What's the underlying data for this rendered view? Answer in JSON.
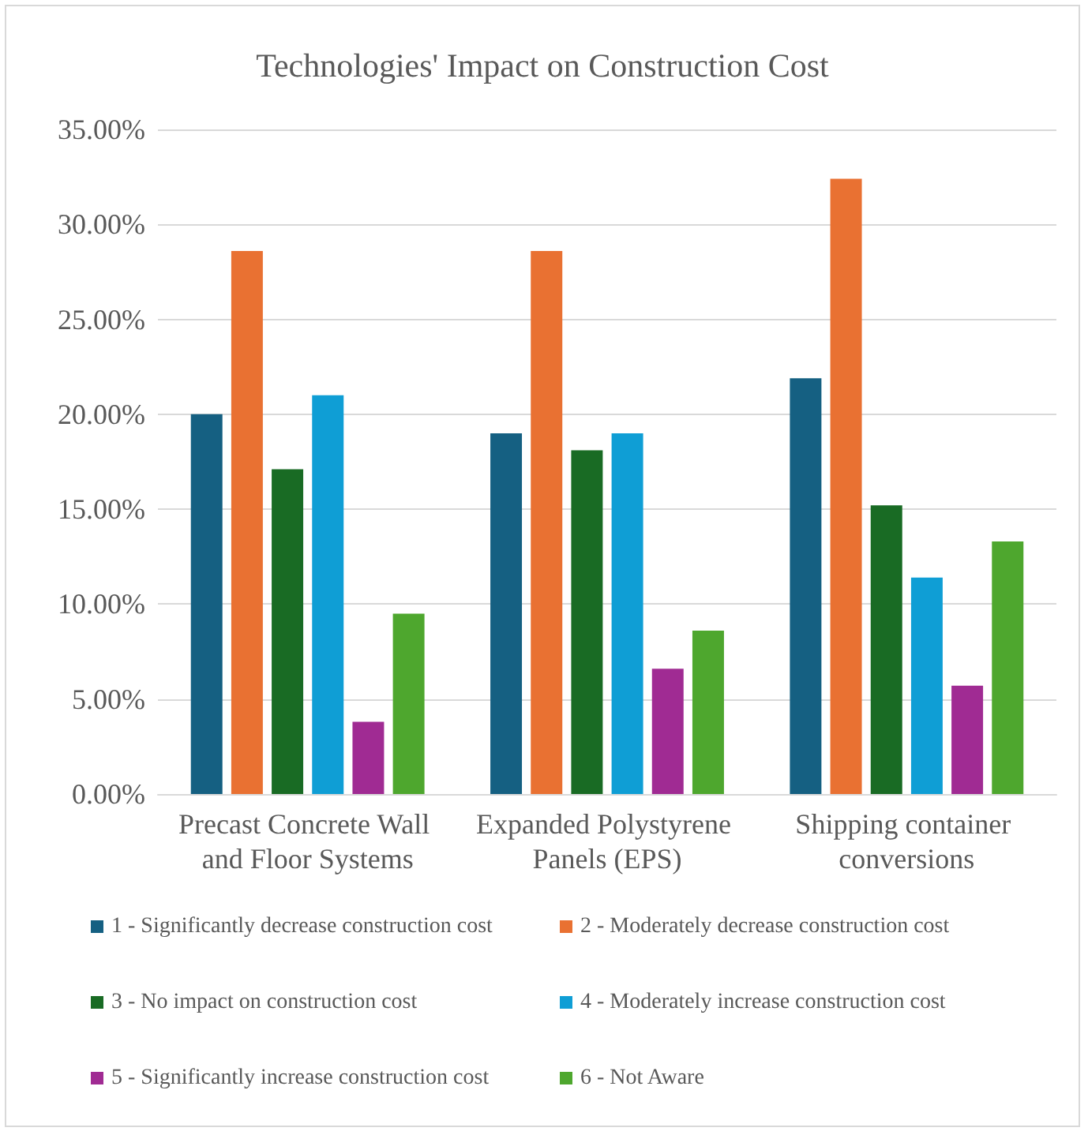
{
  "chart_data": {
    "type": "bar",
    "title": "Technologies' Impact on Construction Cost",
    "categories": [
      "Precast Concrete Wall and Floor Systems",
      "Expanded Polystyrene Panels (EPS)",
      "Shipping container conversions"
    ],
    "series": [
      {
        "name": "1 - Significantly decrease construction cost",
        "color": "#156082",
        "values": [
          20.0,
          19.0,
          21.9
        ]
      },
      {
        "name": "2 - Moderately decrease construction cost",
        "color": "#e97132",
        "values": [
          28.6,
          28.6,
          32.4
        ]
      },
      {
        "name": "3 - No impact on construction cost",
        "color": "#196b24",
        "values": [
          17.1,
          18.1,
          15.2
        ]
      },
      {
        "name": "4 - Moderately increase construction cost",
        "color": "#0f9ed5",
        "values": [
          21.0,
          19.0,
          11.4
        ]
      },
      {
        "name": "5 - Significantly increase construction cost",
        "color": "#a02b93",
        "values": [
          3.8,
          6.6,
          5.7
        ]
      },
      {
        "name": "6 - Not Aware",
        "color": "#4ea72e",
        "values": [
          9.5,
          8.6,
          13.3
        ]
      }
    ],
    "ylim": [
      0,
      35
    ],
    "yticks": [
      {
        "value": 0,
        "label": "0.00%"
      },
      {
        "value": 5,
        "label": "5.00%"
      },
      {
        "value": 10,
        "label": "10.00%"
      },
      {
        "value": 15,
        "label": "15.00%"
      },
      {
        "value": 20,
        "label": "20.00%"
      },
      {
        "value": 25,
        "label": "25.00%"
      },
      {
        "value": 30,
        "label": "30.00%"
      },
      {
        "value": 35,
        "label": "35.00%"
      }
    ],
    "grid": "y",
    "legend": "bottom"
  }
}
